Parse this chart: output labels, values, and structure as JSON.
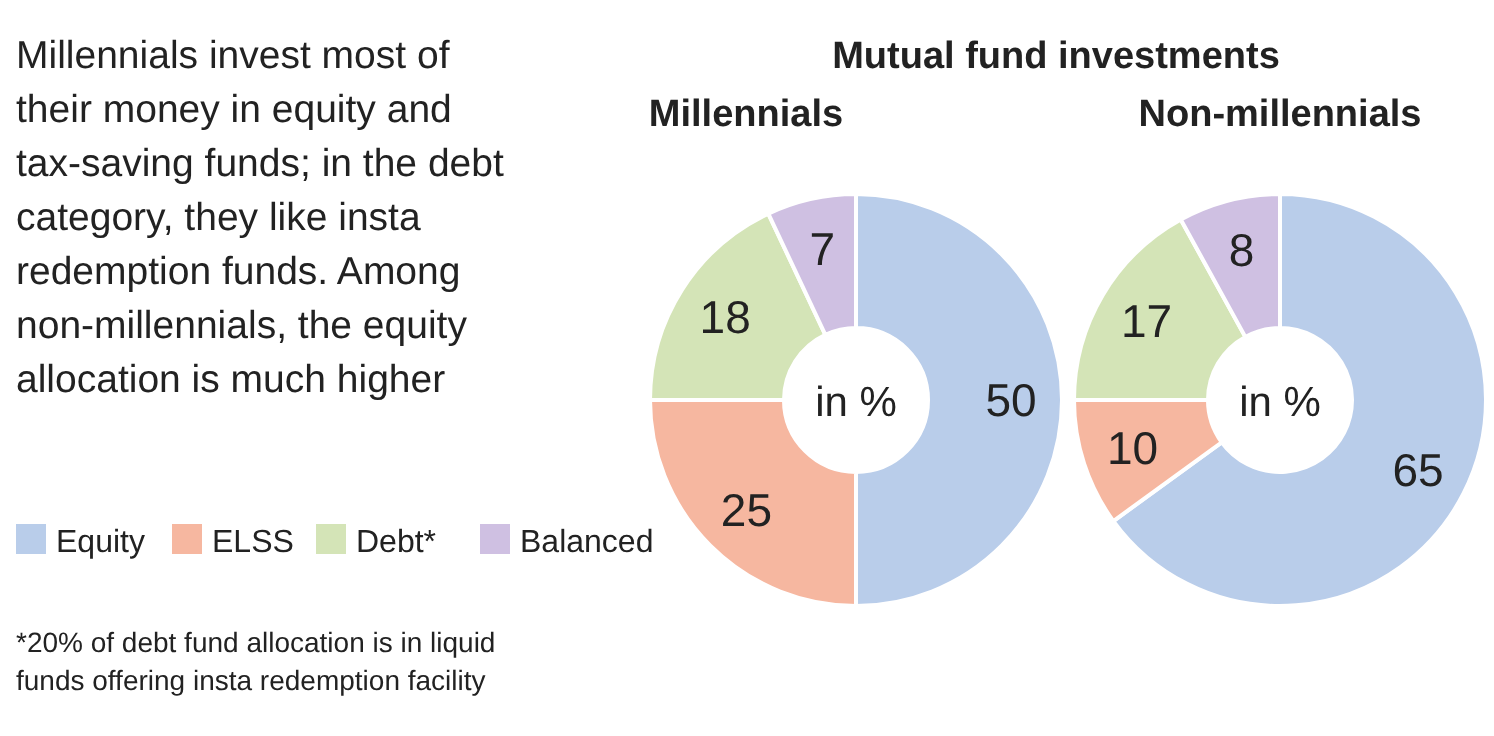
{
  "chart_data": [
    {
      "type": "other",
      "title": "Millennials invest most of their money in equity and tax-saving funds; in the debt category, they like insta redemption funds. Among non-millennials, the equity allocation is much higher",
      "annotations": [
        "*20% of debt fund allocation is in liquid funds offering insta redemption facility"
      ]
    },
    {
      "type": "donut",
      "title": "Mutual fund investments",
      "subtitle": "Millennials",
      "categories": [
        "Equity",
        "ELSS",
        "Debt*",
        "Balanced"
      ],
      "values": [
        50,
        25,
        18,
        7
      ],
      "colors": [
        "#b9cdea",
        "#f6b7a0",
        "#d4e4b7",
        "#cfc0e2"
      ],
      "data_labels": true,
      "legend": "left",
      "annotations": [
        "in %"
      ]
    },
    {
      "type": "donut",
      "title": "Non-millennials",
      "categories": [
        null,
        null,
        null,
        null
      ],
      "values": [
        65,
        10,
        17,
        8
      ],
      "colors": [
        "#b9cdea",
        "#f6b7a0",
        "#d4e4b7",
        "#cfc0e2"
      ],
      "data_labels": true,
      "annotations": [
        "in %"
      ]
    }
  ]
}
